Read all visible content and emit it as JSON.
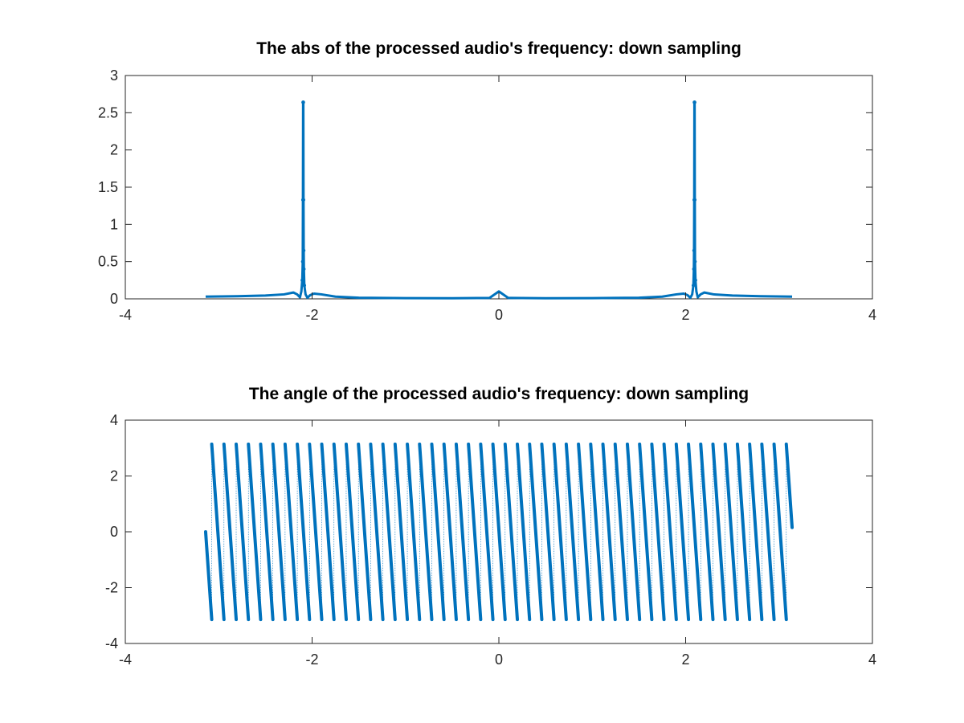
{
  "chart_data": [
    {
      "type": "line",
      "title": "The abs of the processed audio's frequency: down sampling",
      "xlabel": "",
      "ylabel": "",
      "xlim": [
        -4,
        4
      ],
      "ylim": [
        0,
        3
      ],
      "xticks": [
        "-4",
        "-2",
        "0",
        "2",
        "4"
      ],
      "yticks": [
        "0",
        "0.5",
        "1",
        "1.5",
        "2",
        "2.5",
        "3"
      ],
      "grid": false,
      "legend": "none",
      "series_color": "#0072bd",
      "x": [
        -3.14,
        -2.8,
        -2.5,
        -2.3,
        -2.2,
        -2.16,
        -2.13,
        -2.115,
        -2.105,
        -2.1,
        -2.098,
        -2.096,
        -2.094,
        -2.092,
        -2.09,
        -2.088,
        -2.083,
        -2.07,
        -2.05,
        -2.02,
        -1.98,
        -1.9,
        -1.75,
        -1.5,
        -1.0,
        -0.5,
        -0.1,
        0.0,
        0.1,
        0.5,
        1.0,
        1.5,
        1.75,
        1.9,
        1.98,
        2.02,
        2.05,
        2.07,
        2.083,
        2.088,
        2.09,
        2.092,
        2.094,
        2.096,
        2.098,
        2.1,
        2.105,
        2.115,
        2.13,
        2.16,
        2.2,
        2.3,
        2.5,
        2.8,
        3.14
      ],
      "y": [
        0.03,
        0.035,
        0.045,
        0.06,
        0.085,
        0.06,
        0.02,
        0.1,
        0.25,
        0.5,
        1.33,
        2.64,
        2.64,
        1.33,
        0.65,
        0.4,
        0.18,
        0.06,
        0.015,
        0.05,
        0.07,
        0.06,
        0.03,
        0.015,
        0.01,
        0.008,
        0.012,
        0.1,
        0.012,
        0.008,
        0.01,
        0.015,
        0.03,
        0.06,
        0.07,
        0.05,
        0.015,
        0.06,
        0.18,
        0.4,
        0.65,
        1.33,
        2.64,
        2.64,
        1.33,
        0.5,
        0.25,
        0.1,
        0.02,
        0.06,
        0.085,
        0.06,
        0.045,
        0.035,
        0.03
      ]
    },
    {
      "type": "line",
      "title": "The angle of the processed audio's frequency: down sampling",
      "xlabel": "",
      "ylabel": "",
      "xlim": [
        -4,
        4
      ],
      "ylim": [
        -4,
        4
      ],
      "xticks": [
        "-4",
        "-2",
        "0",
        "2",
        "4"
      ],
      "yticks": [
        "-4",
        "-2",
        "0",
        "2",
        "4"
      ],
      "grid": false,
      "legend": "none",
      "series_color": "#0072bd",
      "x_range": [
        -3.14,
        3.14
      ],
      "y_range": [
        -3.14,
        3.14
      ],
      "wrap_period": 0.1309,
      "start_phase": 0,
      "phase_direction": "decreasing"
    }
  ]
}
